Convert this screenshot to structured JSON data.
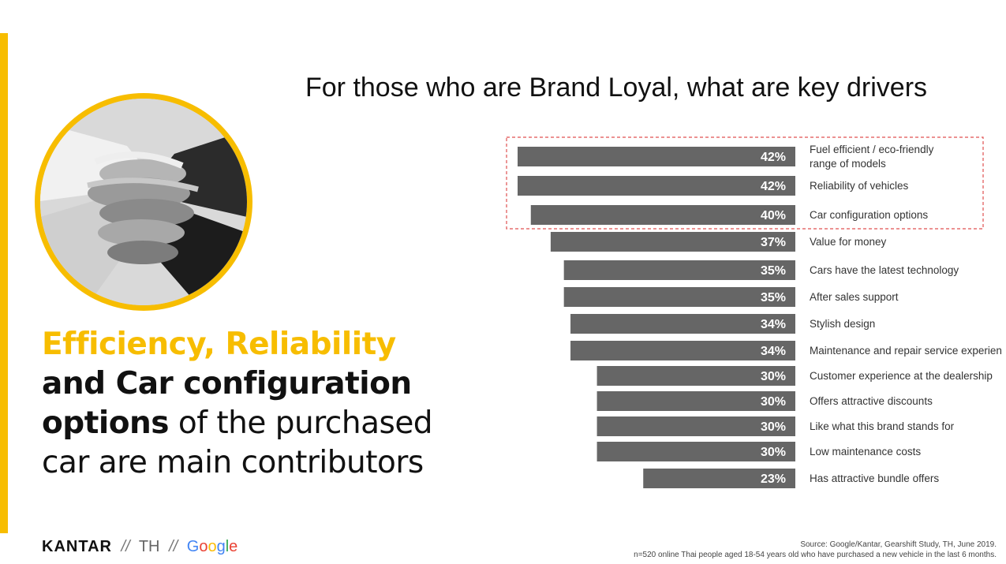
{
  "title": "For those who are Brand Loyal, what are key drivers",
  "headline": {
    "part1_highlight": "Efficiency, Reliability",
    "part2": " and ",
    "part3_bold": "Car configuration options",
    "part4": " of the purchased car are main contributors"
  },
  "colors": {
    "accent": "#f7bd00",
    "bar": "#666666",
    "highlight_box": "#e05050"
  },
  "chart_data": {
    "type": "bar",
    "orientation": "horizontal",
    "categories": [
      "Fuel efficient / eco-friendly range of models",
      "Reliability of vehicles",
      "Car configuration options",
      "Value for money",
      "Cars have the latest technology",
      "After sales support",
      "Stylish design",
      "Maintenance and repair service experience",
      "Customer experience at the dealership",
      "Offers attractive discounts",
      "Like what this brand stands for",
      "Low maintenance costs",
      "Has attractive bundle offers"
    ],
    "values": [
      42,
      42,
      40,
      37,
      35,
      35,
      34,
      34,
      30,
      30,
      30,
      30,
      23
    ],
    "value_labels": [
      "42%",
      "42%",
      "40%",
      "37%",
      "35%",
      "35%",
      "34%",
      "34%",
      "30%",
      "30%",
      "30%",
      "30%",
      "23%"
    ],
    "highlighted_count": 3,
    "xlim": [
      0,
      42
    ]
  },
  "footer": {
    "kantar": "KANTAR",
    "sep": "//",
    "country": "TH",
    "google": [
      "G",
      "o",
      "o",
      "g",
      "l",
      "e"
    ],
    "source_line1": "Source: Google/Kantar, Gearshift Study, TH, June 2019.",
    "source_line2": "n=520 online Thai people aged 18-54 years old who have purchased a new vehicle in the last 6 months."
  }
}
